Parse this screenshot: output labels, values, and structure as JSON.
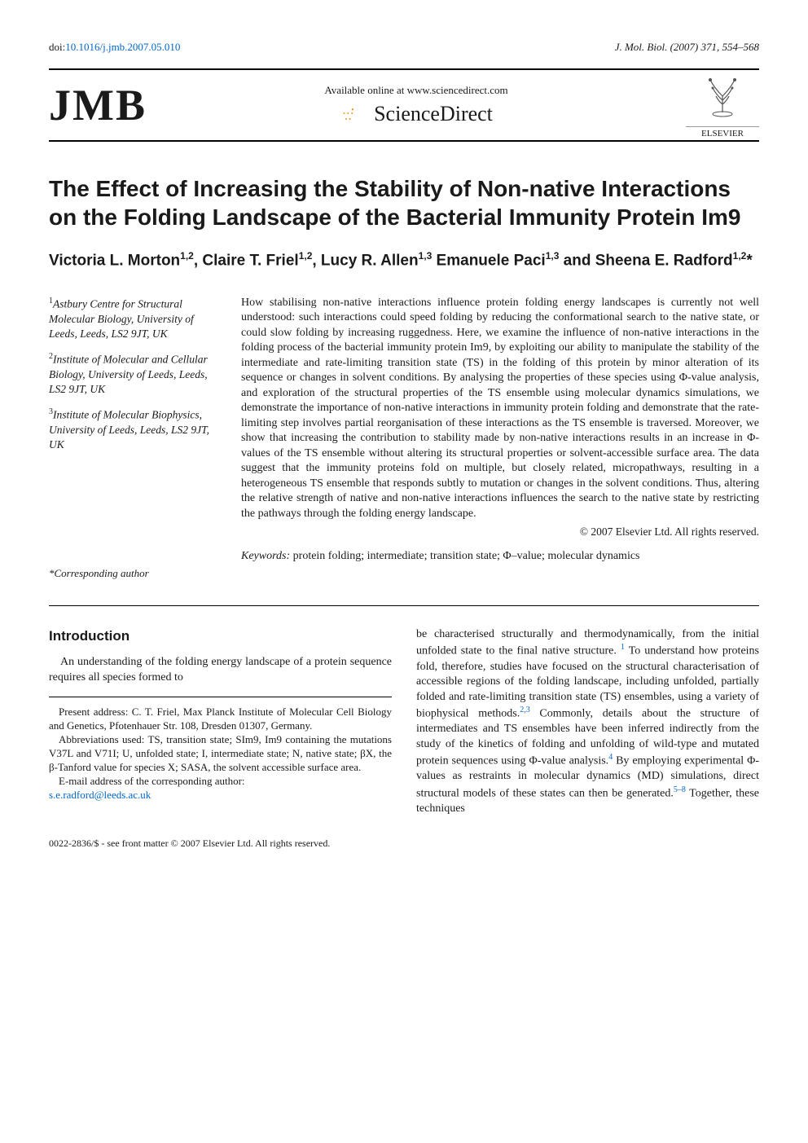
{
  "top": {
    "doi_prefix": "doi:",
    "doi": "10.1016/j.jmb.2007.05.010",
    "journal_ref": "J. Mol. Biol. (2007) 371, 554–568"
  },
  "header": {
    "jmb_logo": "JMB",
    "available_online": "Available online at www.sciencedirect.com",
    "science_direct": "ScienceDirect",
    "elsevier": "ELSEVIER"
  },
  "title": "The Effect of Increasing the Stability of Non-native Interactions on the Folding Landscape of the Bacterial Immunity Protein Im9",
  "authors_html": "Victoria L. Morton<sup>1,2</sup>, Claire T. Friel<sup>1,2</sup>, Lucy R. Allen<sup>1,3</sup> Emanuele Paci<sup>1,3</sup> and Sheena E. Radford<sup>1,2</sup>*",
  "affiliations": {
    "a1": "Astbury Centre for Structural Molecular Biology, University of Leeds, Leeds, LS2 9JT, UK",
    "a2": "Institute of Molecular and Cellular Biology, University of Leeds, Leeds, LS2 9JT, UK",
    "a3": "Institute of Molecular Biophysics, University of Leeds, Leeds, LS2 9JT, UK"
  },
  "corresponding": "*Corresponding author",
  "abstract": "How stabilising non-native interactions influence protein folding energy landscapes is currently not well understood: such interactions could speed folding by reducing the conformational search to the native state, or could slow folding by increasing ruggedness. Here, we examine the influence of non-native interactions in the folding process of the bacterial immunity protein Im9, by exploiting our ability to manipulate the stability of the intermediate and rate-limiting transition state (TS) in the folding of this protein by minor alteration of its sequence or changes in solvent conditions. By analysing the properties of these species using Φ-value analysis, and exploration of the structural properties of the TS ensemble using molecular dynamics simulations, we demonstrate the importance of non-native interactions in immunity protein folding and demonstrate that the rate-limiting step involves partial reorganisation of these interactions as the TS ensemble is traversed. Moreover, we show that increasing the contribution to stability made by non-native interactions results in an increase in Φ-values of the TS ensemble without altering its structural properties or solvent-accessible surface area. The data suggest that the immunity proteins fold on multiple, but closely related, micropathways, resulting in a heterogeneous TS ensemble that responds subtly to mutation or changes in the solvent conditions. Thus, altering the relative strength of native and non-native interactions influences the search to the native state by restricting the pathways through the folding energy landscape.",
  "copyright": "© 2007 Elsevier Ltd. All rights reserved.",
  "keywords_label": "Keywords:",
  "keywords": "protein folding; intermediate; transition state; Φ–value; molecular dynamics",
  "introduction_head": "Introduction",
  "intro_left_p1": "An understanding of the folding energy landscape of a protein sequence requires all species formed to",
  "footnote_present": "Present address: C. T. Friel, Max Planck Institute of Molecular Cell Biology and Genetics, Pfotenhauer Str. 108, Dresden 01307, Germany.",
  "footnote_abbrev": "Abbreviations used: TS, transition state; SIm9, Im9 containing the mutations V37L and V71I; U, unfolded state; I, intermediate state; N, native state; βX, the β-Tanford value for species X; SASA, the solvent accessible surface area.",
  "footnote_email_label": "E-mail address of the corresponding author:",
  "footnote_email": "s.e.radford@leeds.ac.uk",
  "intro_right": "be characterised structurally and thermodynamically, from the initial unfolded state to the final native structure. <sup class=\"ref-sup\">1</sup> To understand how proteins fold, therefore, studies have focused on the structural characterisation of accessible regions of the folding landscape, including unfolded, partially folded and rate-limiting transition state (TS) ensembles, using a variety of biophysical methods.<sup class=\"ref-sup\">2,3</sup> Commonly, details about the structure of intermediates and TS ensembles have been inferred indirectly from the study of the kinetics of folding and unfolding of wild-type and mutated protein sequences using Φ-value analysis.<sup class=\"ref-sup\">4</sup> By employing experimental Φ-values as restraints in molecular dynamics (MD) simulations, direct structural models of these states can then be generated.<sup class=\"ref-sup\">5–8</sup> Together, these techniques",
  "bottom_line": "0022-2836/$ - see front matter © 2007 Elsevier Ltd. All rights reserved.",
  "colors": {
    "link": "#0066cc",
    "text": "#1a1a1a",
    "orange": "#f7941e"
  }
}
